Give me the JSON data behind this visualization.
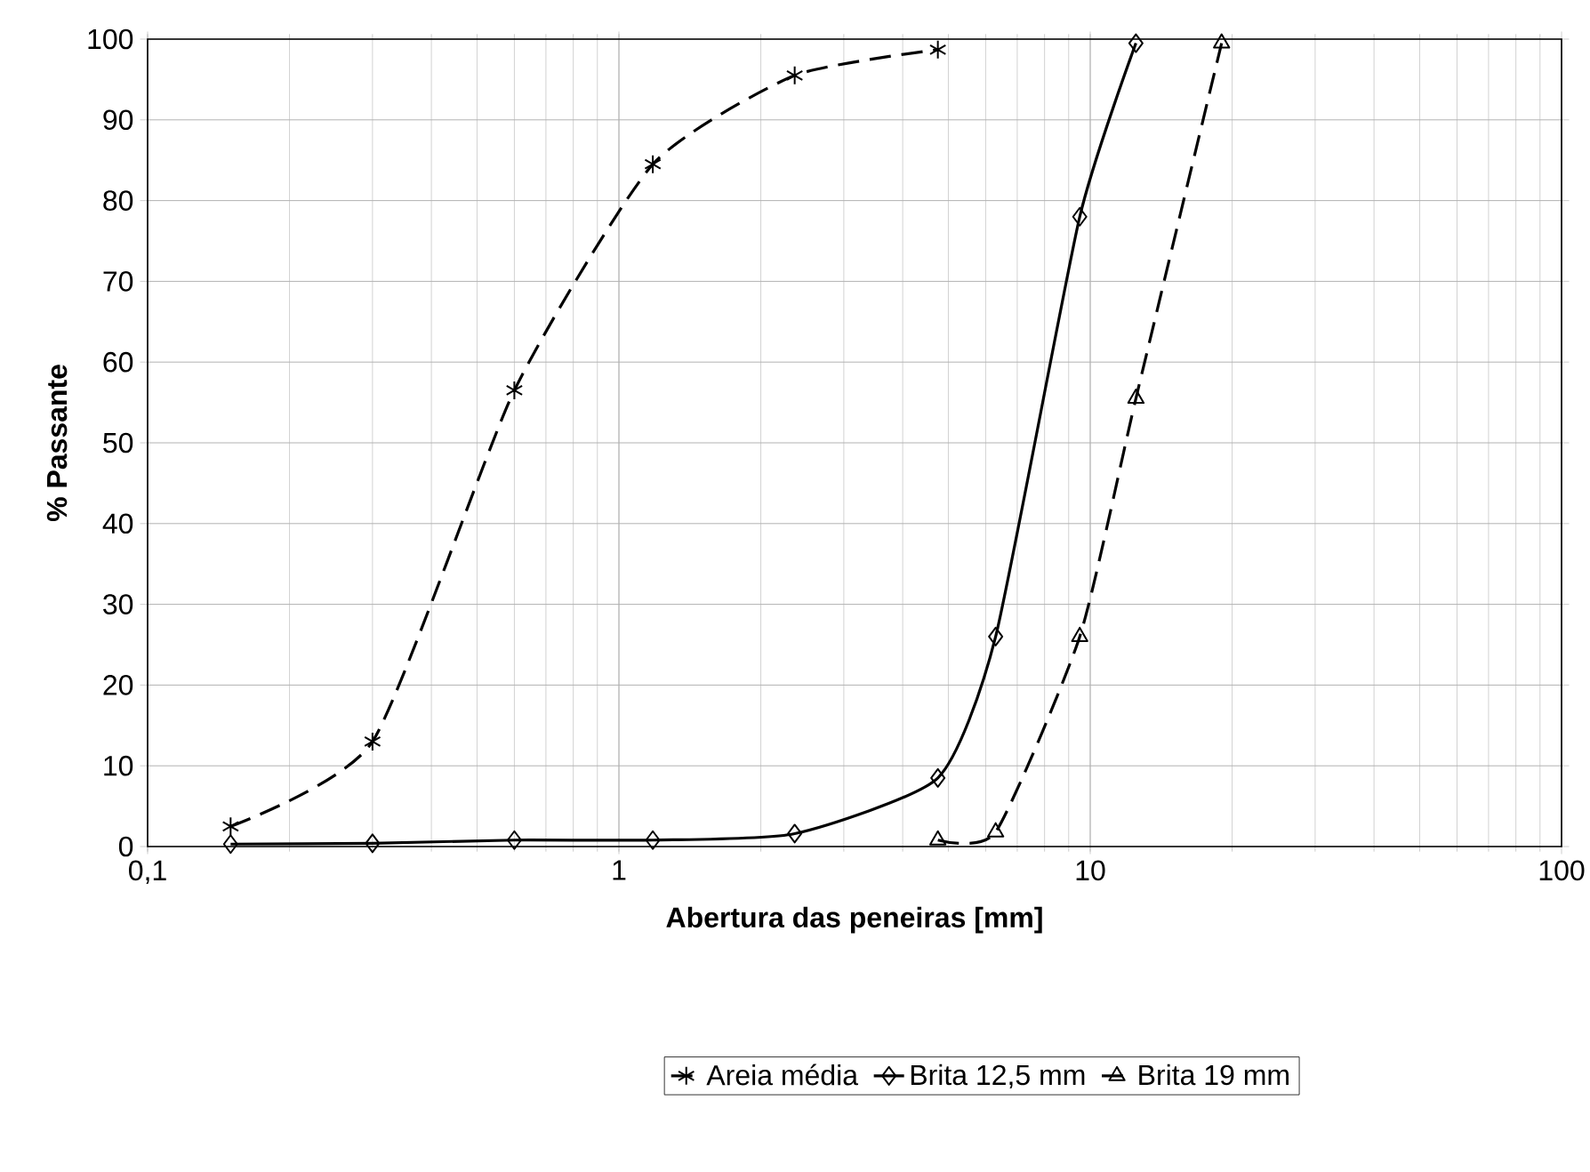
{
  "chart_data": {
    "type": "line",
    "xlabel": "Abertura das peneiras [mm]",
    "ylabel": "% Passante",
    "log": "x",
    "grid": true,
    "legend": "bottom",
    "xlim": [
      0.1,
      100
    ],
    "xticks": [
      {
        "value": 0.1,
        "label": "0,1"
      },
      1,
      10,
      100
    ],
    "ylim": [
      0,
      100
    ],
    "yticks": [
      0,
      10,
      20,
      30,
      40,
      50,
      60,
      70,
      80,
      90,
      100
    ],
    "series": [
      {
        "name": "Areia média",
        "color": "#000000",
        "marker": "cross",
        "line_style": "dashed",
        "x": [
          0.15,
          0.3,
          0.6,
          1.18,
          2.36,
          4.75
        ],
        "values": [
          2.5,
          13,
          56.5,
          84.5,
          95.5,
          98.7
        ]
      },
      {
        "name": "Brita 12,5 mm",
        "color": "#000000",
        "marker": "diamond",
        "line_style": "solid",
        "x": [
          0.15,
          0.3,
          0.6,
          1.18,
          2.36,
          4.75,
          6.3,
          9.5,
          12.5
        ],
        "values": [
          0.3,
          0.4,
          0.8,
          0.8,
          1.6,
          8.5,
          26,
          78,
          99.5
        ]
      },
      {
        "name": "Brita 19 mm",
        "color": "#000000",
        "marker": "triangle",
        "line_style": "dashed",
        "x": [
          4.75,
          6.3,
          9.5,
          12.5,
          19
        ],
        "values": [
          0.8,
          1.8,
          26,
          55.5,
          99.5
        ]
      }
    ]
  }
}
